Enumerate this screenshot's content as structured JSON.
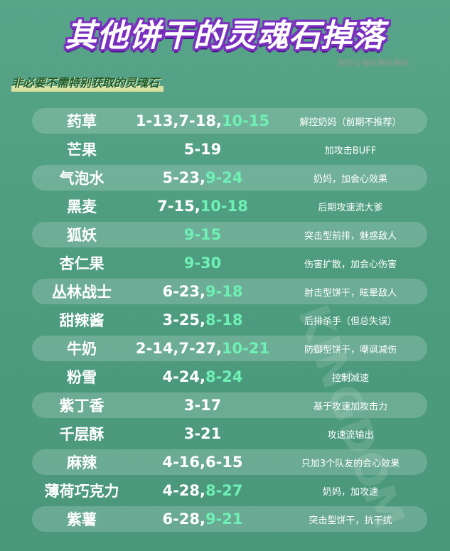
{
  "title": "其他饼干的灵魂石掉落",
  "credit": "制作@卷纸卷纸卷纸",
  "subtitle": "非必要不需特别获取的灵魂石",
  "colors": {
    "background": "#4f9d82",
    "highlight": "#6ff0b4",
    "title_outline": "#7a2fc0"
  },
  "rows": [
    {
      "name": "药草",
      "drop": "1-13,7-18,",
      "drop_green": "10-15",
      "note": "解控奶妈（前期不推荐）"
    },
    {
      "name": "芒果",
      "drop": "5-19",
      "drop_green": "",
      "note": "加攻击BUFF"
    },
    {
      "name": "气泡水",
      "drop": "5-23,",
      "drop_green": "9-24",
      "note": "奶妈，加会心效果"
    },
    {
      "name": "黑麦",
      "drop": "7-15,",
      "drop_green": "10-18",
      "note": "后期攻速流大爹"
    },
    {
      "name": "狐妖",
      "drop": "",
      "drop_green": "9-15",
      "note": "突击型前排，魅惑敌人"
    },
    {
      "name": "杏仁果",
      "drop": "",
      "drop_green": "9-30",
      "note": "伤害扩散，加会心伤害"
    },
    {
      "name": "丛林战士",
      "drop": "6-23,",
      "drop_green": "9-18",
      "note": "射击型饼干，眩晕敌人"
    },
    {
      "name": "甜辣酱",
      "drop": "3-25,",
      "drop_green": "8-18",
      "note": "后排杀手（但总失误）"
    },
    {
      "name": "牛奶",
      "drop": "2-14,7-27,",
      "drop_green": "10-21",
      "note": "防御型饼干，嘲讽减伤"
    },
    {
      "name": "粉雪",
      "drop": "4-24,",
      "drop_green": "8-24",
      "note": "控制减速"
    },
    {
      "name": "紫丁香",
      "drop": "3-17",
      "drop_green": "",
      "note": "基于攻速加攻击力"
    },
    {
      "name": "千层酥",
      "drop": "3-21",
      "drop_green": "",
      "note": "攻速流输出"
    },
    {
      "name": "麻辣",
      "drop": "4-16,6-15",
      "drop_green": "",
      "note": "只加3个队友的会心效果"
    },
    {
      "name": "薄荷巧克力",
      "drop": "4-28,",
      "drop_green": "8-27",
      "note": "奶妈，加攻速"
    },
    {
      "name": "紫薯",
      "drop": "6-28,",
      "drop_green": "9-21",
      "note": "突击型饼干，抗干扰"
    }
  ]
}
